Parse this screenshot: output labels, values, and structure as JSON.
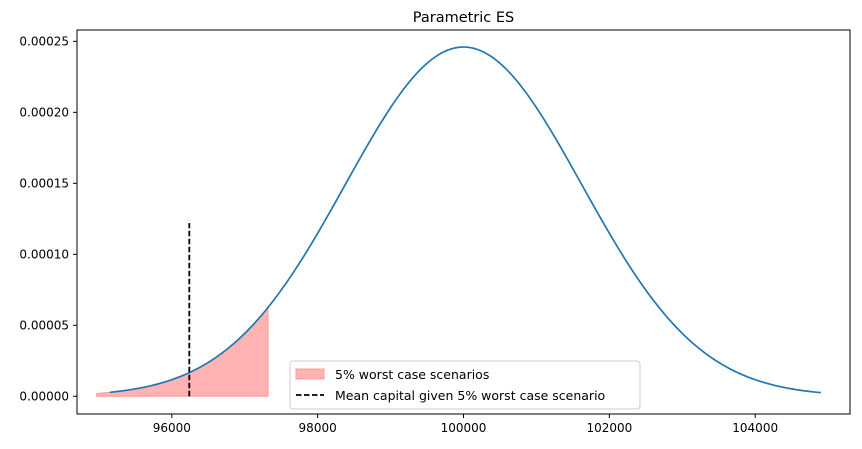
{
  "chart_data": {
    "type": "line",
    "title": "Parametric ES",
    "xlabel": "",
    "ylabel": "",
    "xlim": [
      94700,
      105300
    ],
    "ylim": [
      -1.25e-05,
      0.000258
    ],
    "x_ticks": [
      96000,
      98000,
      100000,
      102000,
      104000
    ],
    "y_ticks": [
      0.0,
      5e-05,
      0.0001,
      0.00015,
      0.0002,
      0.00025
    ],
    "x_tick_labels": [
      "96000",
      "98000",
      "100000",
      "102000",
      "104000"
    ],
    "y_tick_labels": [
      "0.00000",
      "0.00005",
      "0.00010",
      "0.00015",
      "0.00020",
      "0.00025"
    ],
    "grid": false,
    "legend_position": "lower-center",
    "series": [
      {
        "type": "line",
        "color": "#1f77b4",
        "distribution": "normal",
        "mean": 100000,
        "std": 1620,
        "x_range": [
          95150,
          104900
        ],
        "peak_density": 0.000246
      },
      {
        "type": "area",
        "name": "5% worst case scenarios",
        "color": "#ff9999",
        "x_range": [
          94970,
          97320
        ],
        "note_fill": "under curve"
      },
      {
        "type": "vline",
        "name": "Mean capital given 5% worst case scenario",
        "color": "#000000",
        "style": "dashed",
        "x": 96240,
        "y_range": [
          0,
          0.000122
        ]
      }
    ]
  }
}
